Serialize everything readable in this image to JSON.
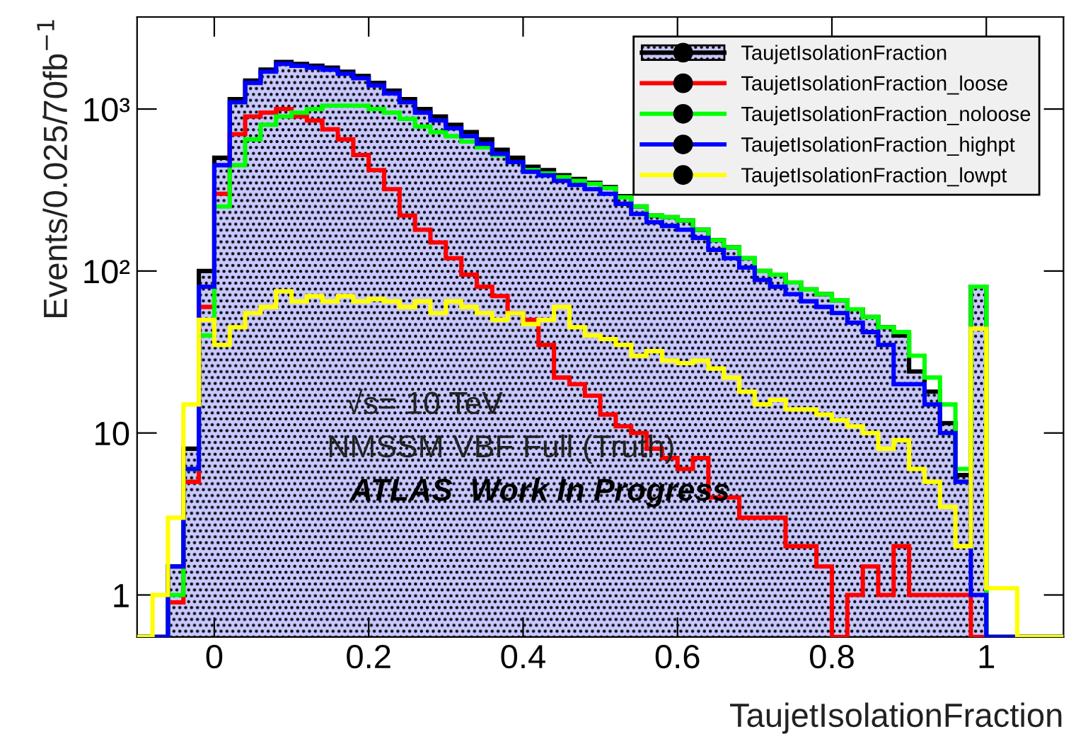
{
  "chart_data": {
    "type": "histogram",
    "xlabel": "TaujetIsolationFraction",
    "ylabel": "Events/0.025/70fb$^{−1}$",
    "bins": [
      -0.1,
      -0.08,
      -0.06,
      -0.04,
      -0.02,
      0,
      0.02,
      0.04,
      0.06,
      0.08,
      0.1,
      0.12,
      0.14,
      0.16,
      0.18,
      0.2,
      0.22,
      0.24,
      0.26,
      0.28,
      0.3,
      0.32,
      0.34,
      0.36,
      0.38,
      0.4,
      0.42,
      0.44,
      0.46,
      0.48,
      0.5,
      0.52,
      0.54,
      0.56,
      0.58,
      0.6,
      0.62,
      0.64,
      0.66,
      0.68,
      0.7,
      0.72,
      0.74,
      0.76,
      0.78,
      0.8,
      0.82,
      0.84,
      0.86,
      0.88,
      0.9,
      0.92,
      0.94,
      0.96,
      0.98,
      1.0,
      1.02,
      1.04,
      1.06,
      1.08,
      1.1
    ],
    "series": [
      {
        "name": "TaujetIsolationFraction",
        "color": "#000000",
        "values": [
          null,
          null,
          1.5,
          8,
          100,
          500,
          1150,
          1500,
          1750,
          1950,
          1900,
          1850,
          1800,
          1700,
          1600,
          1450,
          1300,
          1150,
          1000,
          900,
          800,
          720,
          650,
          560,
          500,
          440,
          420,
          390,
          370,
          350,
          330,
          290,
          250,
          220,
          215,
          205,
          180,
          155,
          140,
          120,
          100,
          95,
          85,
          77,
          72,
          66,
          58,
          52,
          45,
          40,
          24,
          18,
          11.5,
          5.5,
          80,
          null,
          null,
          null,
          null,
          null
        ]
      },
      {
        "name": "TaujetIsolationFraction_loose",
        "color": "#ff0000",
        "values": [
          null,
          null,
          0.9,
          5,
          60,
          300,
          700,
          900,
          950,
          1000,
          900,
          850,
          750,
          650,
          520,
          420,
          320,
          220,
          180,
          150,
          120,
          95,
          80,
          70,
          55,
          50,
          35,
          22,
          20,
          17,
          13,
          11,
          10,
          8,
          7,
          6,
          7,
          4,
          4,
          3,
          3,
          3,
          2,
          2,
          1.5,
          null,
          1,
          1.5,
          1,
          2,
          1,
          1,
          1,
          1,
          null,
          null,
          null,
          null,
          null,
          null
        ]
      },
      {
        "name": "TaujetIsolationFraction_noloose",
        "color": "#00ff00",
        "values": [
          null,
          null,
          1,
          6,
          40,
          250,
          450,
          650,
          800,
          900,
          950,
          1000,
          1050,
          1050,
          1050,
          1000,
          950,
          870,
          780,
          720,
          680,
          630,
          580,
          520,
          470,
          420,
          400,
          380,
          360,
          345,
          325,
          285,
          250,
          220,
          215,
          205,
          180,
          155,
          140,
          120,
          100,
          95,
          85,
          77,
          72,
          66,
          58,
          52,
          45,
          42,
          30,
          22,
          15,
          6,
          80,
          null,
          null,
          null,
          null,
          null
        ]
      },
      {
        "name": "TaujetIsolationFraction_highpt",
        "color": "#0000ff",
        "values": [
          null,
          null,
          1.5,
          6,
          80,
          450,
          1100,
          1450,
          1700,
          1900,
          1850,
          1800,
          1750,
          1650,
          1550,
          1400,
          1250,
          1100,
          950,
          850,
          760,
          680,
          610,
          530,
          470,
          410,
          390,
          360,
          340,
          320,
          300,
          260,
          225,
          200,
          190,
          180,
          160,
          135,
          120,
          105,
          88,
          80,
          72,
          65,
          60,
          55,
          48,
          42,
          35,
          20,
          20,
          15,
          10,
          5,
          1,
          null,
          null,
          null,
          null,
          null
        ]
      },
      {
        "name": "TaujetIsolationFraction_lowpt",
        "color": "#ffff00",
        "values": [
          null,
          1,
          3,
          15,
          50,
          35,
          45,
          55,
          60,
          75,
          65,
          70,
          65,
          70,
          65,
          67,
          65,
          60,
          65,
          55,
          65,
          60,
          55,
          50,
          55,
          47,
          50,
          60,
          45,
          40,
          38,
          35,
          30,
          32,
          28,
          27,
          28,
          25,
          22,
          18,
          15,
          16,
          14,
          14,
          13,
          12,
          11,
          10,
          8,
          9,
          6,
          5,
          3.5,
          2,
          44,
          1.1,
          1.1,
          null,
          null,
          null
        ]
      }
    ],
    "log": true,
    "xlim": [
      -0.1,
      1.1
    ],
    "ylim": [
      0.55,
      3700
    ],
    "xticks": [
      0,
      0.2,
      0.4,
      0.6,
      0.8,
      1
    ],
    "yticks": [
      1,
      10,
      {
        "value": 100,
        "label": "10²"
      },
      {
        "value": 1000,
        "label": "10³"
      }
    ],
    "legend": "top right",
    "annotations": [
      "√s= 10 TeV",
      "NMSSM VBF Full (Truth)",
      "ATLAS  Work In Progress"
    ]
  }
}
